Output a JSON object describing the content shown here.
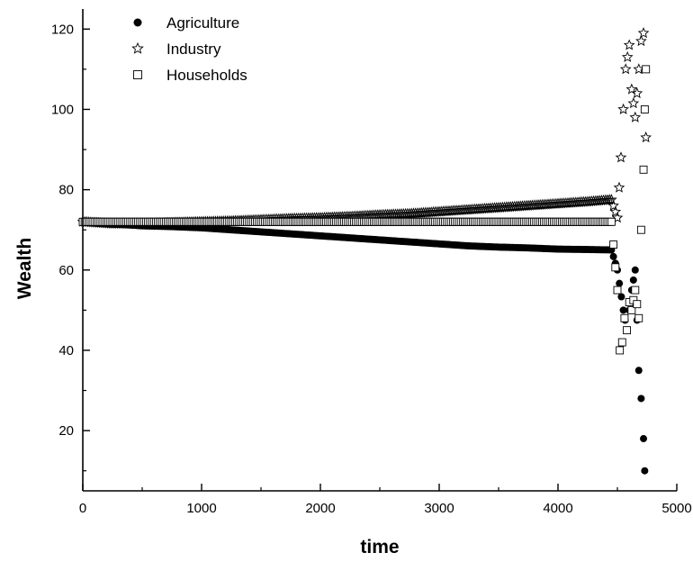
{
  "chart_data": {
    "type": "scatter",
    "title": "",
    "xlabel": "time",
    "ylabel": "Wealth",
    "xlim": [
      0,
      5000
    ],
    "ylim": [
      5,
      125
    ],
    "xticks": [
      0,
      1000,
      2000,
      3000,
      4000,
      5000
    ],
    "yticks": [
      20,
      40,
      60,
      80,
      100,
      120
    ],
    "grid": false,
    "legend_position": "top-left",
    "series": [
      {
        "name": "Agriculture",
        "marker": "filled-circle",
        "color": "#000000",
        "x": [
          0,
          250,
          500,
          750,
          1000,
          1250,
          1500,
          1750,
          2000,
          2250,
          2500,
          2750,
          3000,
          3250,
          3500,
          3750,
          4000,
          4250,
          4450,
          4500,
          4550,
          4580,
          4620,
          4650,
          4680,
          4700,
          4720,
          4730
        ],
        "y": [
          72,
          71.5,
          71,
          70.8,
          70.5,
          70,
          69.5,
          69,
          68.5,
          68,
          67.5,
          67,
          66.5,
          66,
          65.7,
          65.5,
          65.2,
          65.1,
          65,
          60,
          50,
          45,
          55,
          60,
          35,
          28,
          18,
          10
        ]
      },
      {
        "name": "Industry",
        "marker": "open-star",
        "color": "#000000",
        "x": [
          0,
          250,
          500,
          750,
          1000,
          1250,
          1500,
          1750,
          2000,
          2250,
          2500,
          2750,
          3000,
          3250,
          3500,
          3750,
          4000,
          4250,
          4450,
          4500,
          4530,
          4550,
          4570,
          4600,
          4620,
          4650,
          4680,
          4700,
          4720,
          4740
        ],
        "y": [
          72,
          71.5,
          71.5,
          71.8,
          72,
          72.2,
          72.5,
          72.8,
          73,
          73.3,
          73.7,
          74,
          74.5,
          75,
          75.5,
          76,
          76.5,
          77,
          77.5,
          73,
          88,
          100,
          110,
          116,
          105,
          98,
          110,
          117,
          119,
          93
        ]
      },
      {
        "name": "Households",
        "marker": "open-square",
        "color": "#000000",
        "x": [
          0,
          250,
          500,
          750,
          1000,
          1250,
          1500,
          1750,
          2000,
          2250,
          2500,
          2750,
          3000,
          3250,
          3500,
          3750,
          4000,
          4250,
          4450,
          4500,
          4520,
          4540,
          4560,
          4580,
          4600,
          4620,
          4650,
          4680,
          4700,
          4720,
          4730,
          4740
        ],
        "y": [
          72,
          72,
          72,
          72,
          72,
          72,
          72,
          72,
          72,
          72,
          72,
          72,
          72,
          72,
          72,
          72,
          72,
          72,
          72,
          55,
          40,
          42,
          48,
          45,
          52,
          50,
          55,
          48,
          70,
          85,
          100,
          110
        ]
      }
    ]
  }
}
